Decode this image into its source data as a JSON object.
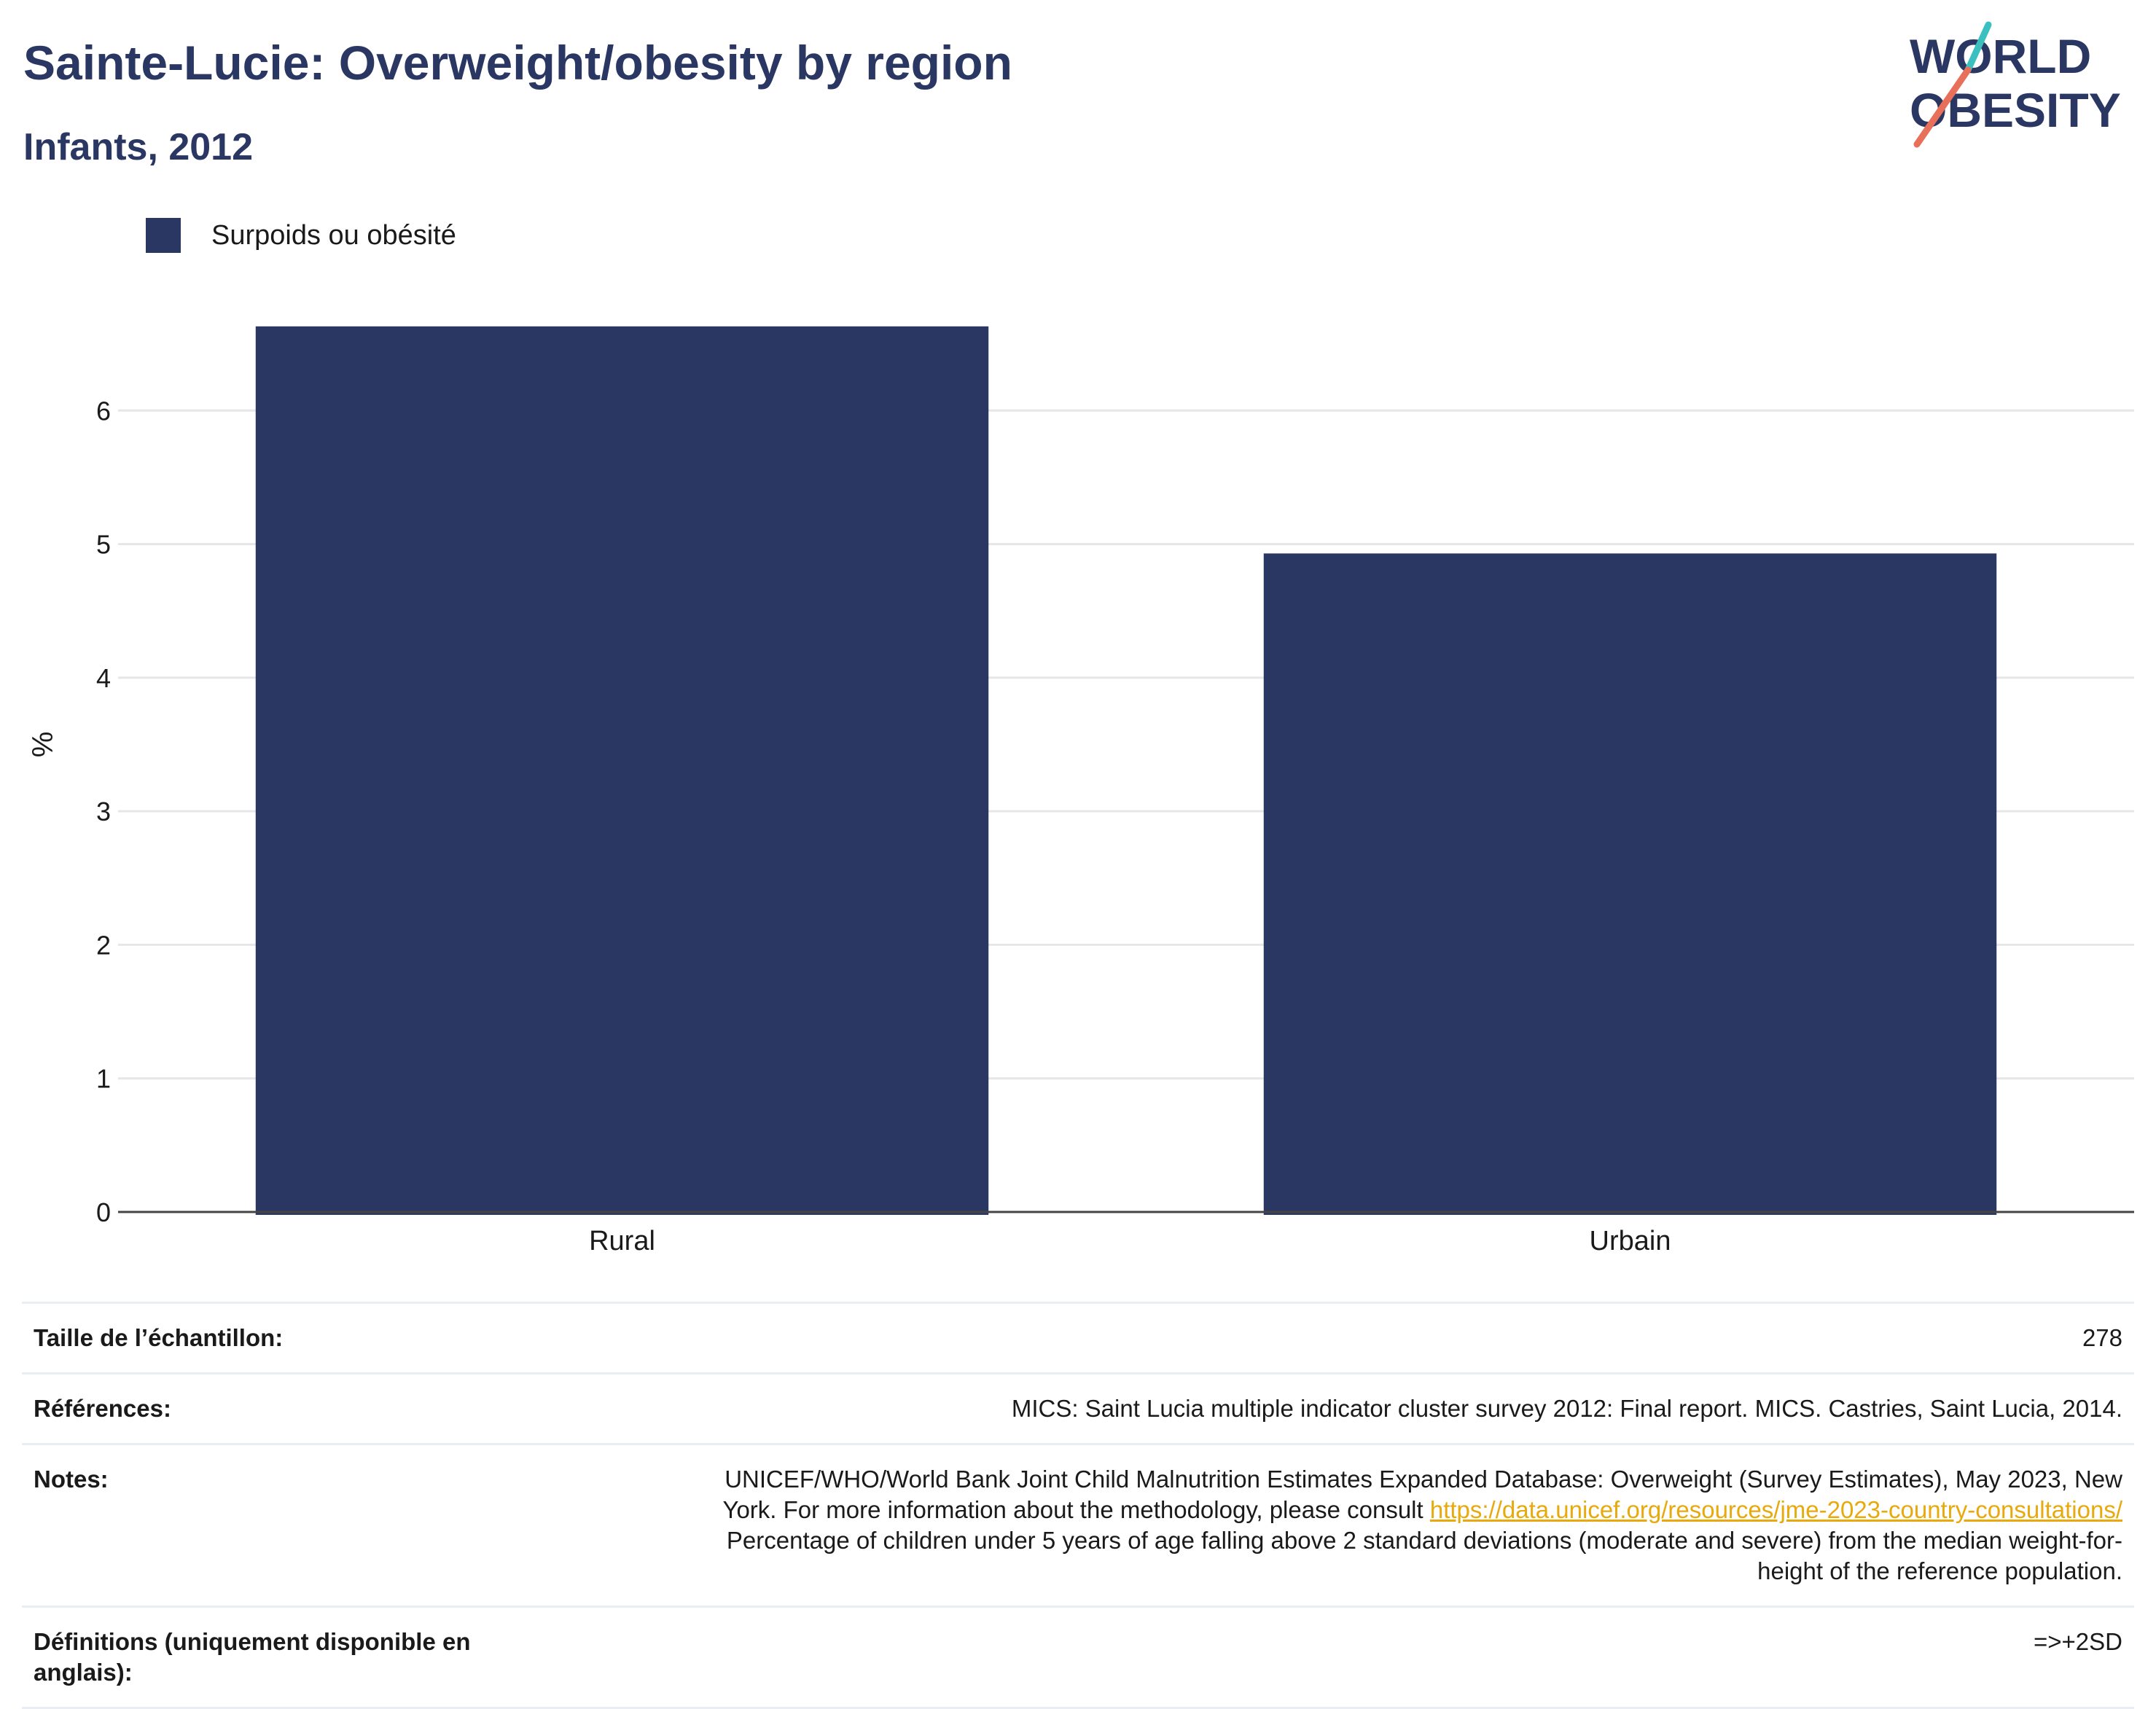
{
  "header": {
    "title": "Sainte-Lucie: Overweight/obesity by region",
    "subtitle": "Infants, 2012"
  },
  "logo": {
    "line1": "WORLD",
    "line2": "OBESITY",
    "colors": {
      "navy": "#2b3763",
      "teal": "#3bbfbf",
      "coral": "#e8705a"
    }
  },
  "legend": {
    "label": "Surpoids ou obésité",
    "color": "#2b3763"
  },
  "chart_data": {
    "type": "bar",
    "categories": [
      "Rural",
      "Urbain"
    ],
    "series": [
      {
        "name": "Surpoids ou obésité",
        "values": [
          6.63,
          4.93
        ]
      }
    ],
    "ylabel": "%",
    "ylim": [
      0,
      7
    ],
    "yticks": [
      0,
      1,
      2,
      3,
      4,
      5,
      6
    ],
    "grid": true,
    "legend_position": "top-left",
    "bar_color": "#2b3763"
  },
  "info": {
    "sample_label": "Taille de l’échantillon:",
    "sample_value": "278",
    "references_label": "Références:",
    "references_value": "MICS: Saint Lucia multiple indicator cluster survey 2012: Final report. MICS. Castries, Saint Lucia, 2014.",
    "notes_label": "Notes:",
    "notes_line1": "UNICEF/WHO/World Bank Joint Child Malnutrition Estimates Expanded Database: Overweight (Survey Estimates), May 2023, New",
    "notes_line2_pre": "York. For more information about the methodology, please consult ",
    "notes_link": "https://data.unicef.org/resources/jme-2023-country-consultations/",
    "notes_line3": "Percentage of children under 5 years of age falling above 2 standard deviations (moderate and severe) from the median weight-for-",
    "notes_line4": "height of the reference population.",
    "definitions_label": "Définitions (uniquement disponible en anglais):",
    "definitions_value": "=>+2SD"
  }
}
